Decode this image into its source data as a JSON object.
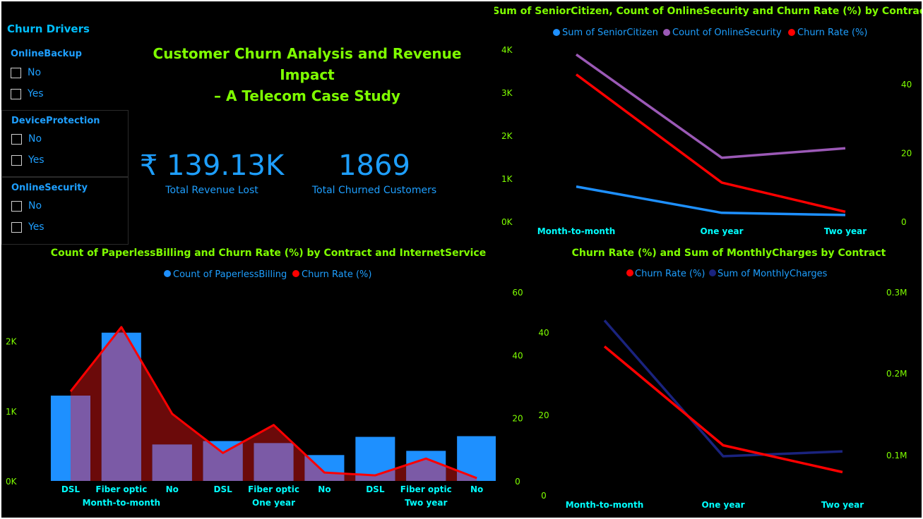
{
  "slicers": {
    "title": "Churn Drivers",
    "groups": [
      {
        "label": "OnlineBackup",
        "options": [
          "No",
          "Yes"
        ]
      },
      {
        "label": "DeviceProtection",
        "options": [
          "No",
          "Yes"
        ]
      },
      {
        "label": "OnlineSecurity",
        "options": [
          "No",
          "Yes"
        ]
      }
    ]
  },
  "header": {
    "title_line1": "Customer Churn Analysis and Revenue Impact",
    "title_line2": "– A Telecom Case Study"
  },
  "kpis": [
    {
      "value": "₹ 139.13K",
      "label": "Total Revenue Lost"
    },
    {
      "value": "1869",
      "label": "Total Churned Customers"
    }
  ],
  "colors": {
    "bg": "#000000",
    "blue": "#1e90ff",
    "purple": "#9b59b6",
    "red": "#ff0000",
    "navy": "#1a237e",
    "green": "#7fff00",
    "cyan": "#00ffff"
  },
  "chart_data": [
    {
      "id": "chart1",
      "type": "line",
      "title": "Sum of SeniorCitizen, Count of OnlineSecurity and Churn Rate (%) by Contract",
      "categories": [
        "Month-to-month",
        "One year",
        "Two year"
      ],
      "legend": [
        "Sum of SeniorCitizen",
        "Count of OnlineSecurity",
        "Churn Rate (%)"
      ],
      "y_left": {
        "range": [
          0,
          4000
        ],
        "ticks": [
          "0K",
          "1K",
          "2K",
          "3K",
          "4K"
        ]
      },
      "y_right": {
        "range": [
          0,
          50
        ],
        "ticks": [
          "0",
          "20",
          "40"
        ]
      },
      "series": [
        {
          "name": "Sum of SeniorCitizen",
          "axis": "left",
          "color": "#1e90ff",
          "values": [
            810,
            200,
            150
          ]
        },
        {
          "name": "Count of OnlineSecurity",
          "axis": "left",
          "color": "#9b59b6",
          "values": [
            3880,
            1480,
            1700
          ]
        },
        {
          "name": "Churn Rate (%)",
          "axis": "right",
          "color": "#ff0000",
          "values": [
            42.7,
            11.3,
            2.8
          ]
        }
      ]
    },
    {
      "id": "chart2",
      "type": "bar",
      "title": "Count of PaperlessBilling and Churn Rate (%) by Contract and InternetService",
      "legend": [
        "Count of PaperlessBilling",
        "Churn Rate (%)"
      ],
      "categories": [
        "DSL",
        "Fiber optic",
        "No",
        "DSL",
        "Fiber optic",
        "No",
        "DSL",
        "Fiber optic",
        "No"
      ],
      "groups": [
        "Month-to-month",
        "One year",
        "Two year"
      ],
      "y_left": {
        "range": [
          0,
          2400
        ],
        "ticks": [
          "0K",
          "1K",
          "2K"
        ]
      },
      "y_right": {
        "range": [
          0,
          60
        ]
      },
      "series": [
        {
          "name": "Count of PaperlessBilling",
          "axis": "left",
          "color": "#1e90ff",
          "values": [
            1220,
            2120,
            520,
            570,
            540,
            370,
            630,
            430,
            640
          ]
        },
        {
          "name": "Churn Rate (%)",
          "axis": "right",
          "color": "#ff0000",
          "values": [
            32,
            55,
            24,
            10,
            20,
            3,
            2,
            8,
            1
          ]
        }
      ]
    },
    {
      "id": "chart3",
      "type": "line",
      "title": "Churn Rate (%) and Sum of MonthlyCharges by Contract",
      "categories": [
        "Month-to-month",
        "One year",
        "Two year"
      ],
      "legend": [
        "Churn Rate (%)",
        "Sum of MonthlyCharges"
      ],
      "y_left": {
        "range": [
          0,
          60
        ],
        "ticks": [
          "0",
          "20",
          "40",
          "60"
        ]
      },
      "y_left_inner": {
        "ticks": [
          "0",
          "20",
          "40"
        ]
      },
      "y_right": {
        "range": [
          0.05,
          0.3
        ],
        "ticks": [
          "0.1M",
          "0.2M",
          "0.3M"
        ]
      },
      "series": [
        {
          "name": "Churn Rate (%)",
          "axis": "left",
          "color": "#ff0000",
          "values": [
            42.7,
            11.3,
            2.8
          ]
        },
        {
          "name": "Sum of MonthlyCharges",
          "axis": "right",
          "color": "#1a237e",
          "values": [
            0.265,
            0.098,
            0.104
          ]
        }
      ]
    }
  ]
}
